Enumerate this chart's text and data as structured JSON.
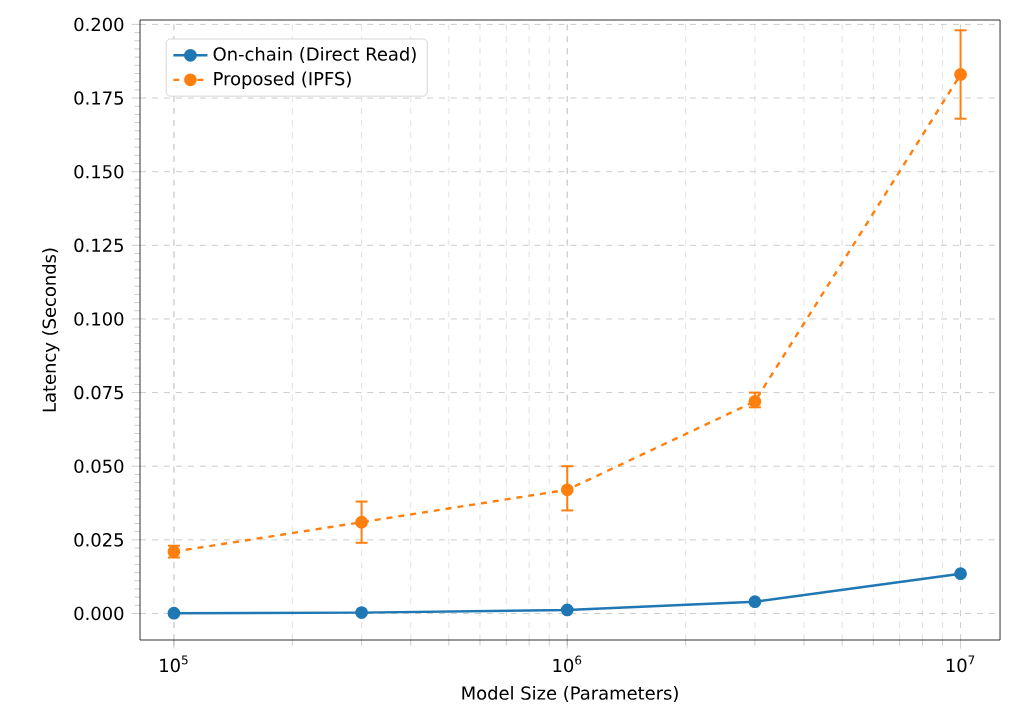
{
  "chart_data": {
    "type": "line",
    "xlabel": "Model Size (Parameters)",
    "ylabel": "Latency (Seconds)",
    "log": "x",
    "grid": true,
    "legend": "top left",
    "marker": "circle",
    "xlim": [
      82000,
      12600000
    ],
    "ylim": [
      -0.009,
      0.2015
    ],
    "xticks": [
      {
        "value": 100000,
        "label": "10$^{5}$"
      },
      {
        "value": 1000000,
        "label": "10$^{6}$"
      },
      {
        "value": 10000000,
        "label": "10$^{7}$"
      }
    ],
    "yticks": [
      {
        "value": 0,
        "label": "0.000"
      },
      {
        "value": 0.025,
        "label": "0.025"
      },
      {
        "value": 0.05,
        "label": "0.050"
      },
      {
        "value": 0.075,
        "label": "0.075"
      },
      {
        "value": 0.1,
        "label": "0.100"
      },
      {
        "value": 0.125,
        "label": "0.125"
      },
      {
        "value": 0.15,
        "label": "0.150"
      },
      {
        "value": 0.175,
        "label": "0.175"
      },
      {
        "value": 0.2,
        "label": "0.200"
      }
    ],
    "x": [
      100000,
      300000,
      1000000,
      3000000,
      10000000
    ],
    "series": [
      {
        "name": "On-chain (Direct Read)",
        "color": "#1f77b4",
        "line_style": "solid",
        "values": [
          0.0001,
          0.0003,
          0.0012,
          0.004,
          0.0135
        ]
      },
      {
        "name": "Proposed (IPFS)",
        "color": "#ff7f0e",
        "line_style": "dashed",
        "values": [
          0.021,
          0.031,
          0.042,
          0.072,
          0.183
        ],
        "errors": [
          [
            0.019,
            0.023
          ],
          [
            0.024,
            0.038
          ],
          [
            0.035,
            0.05
          ],
          [
            0.07,
            0.075
          ],
          [
            0.168,
            0.198
          ]
        ]
      }
    ]
  }
}
